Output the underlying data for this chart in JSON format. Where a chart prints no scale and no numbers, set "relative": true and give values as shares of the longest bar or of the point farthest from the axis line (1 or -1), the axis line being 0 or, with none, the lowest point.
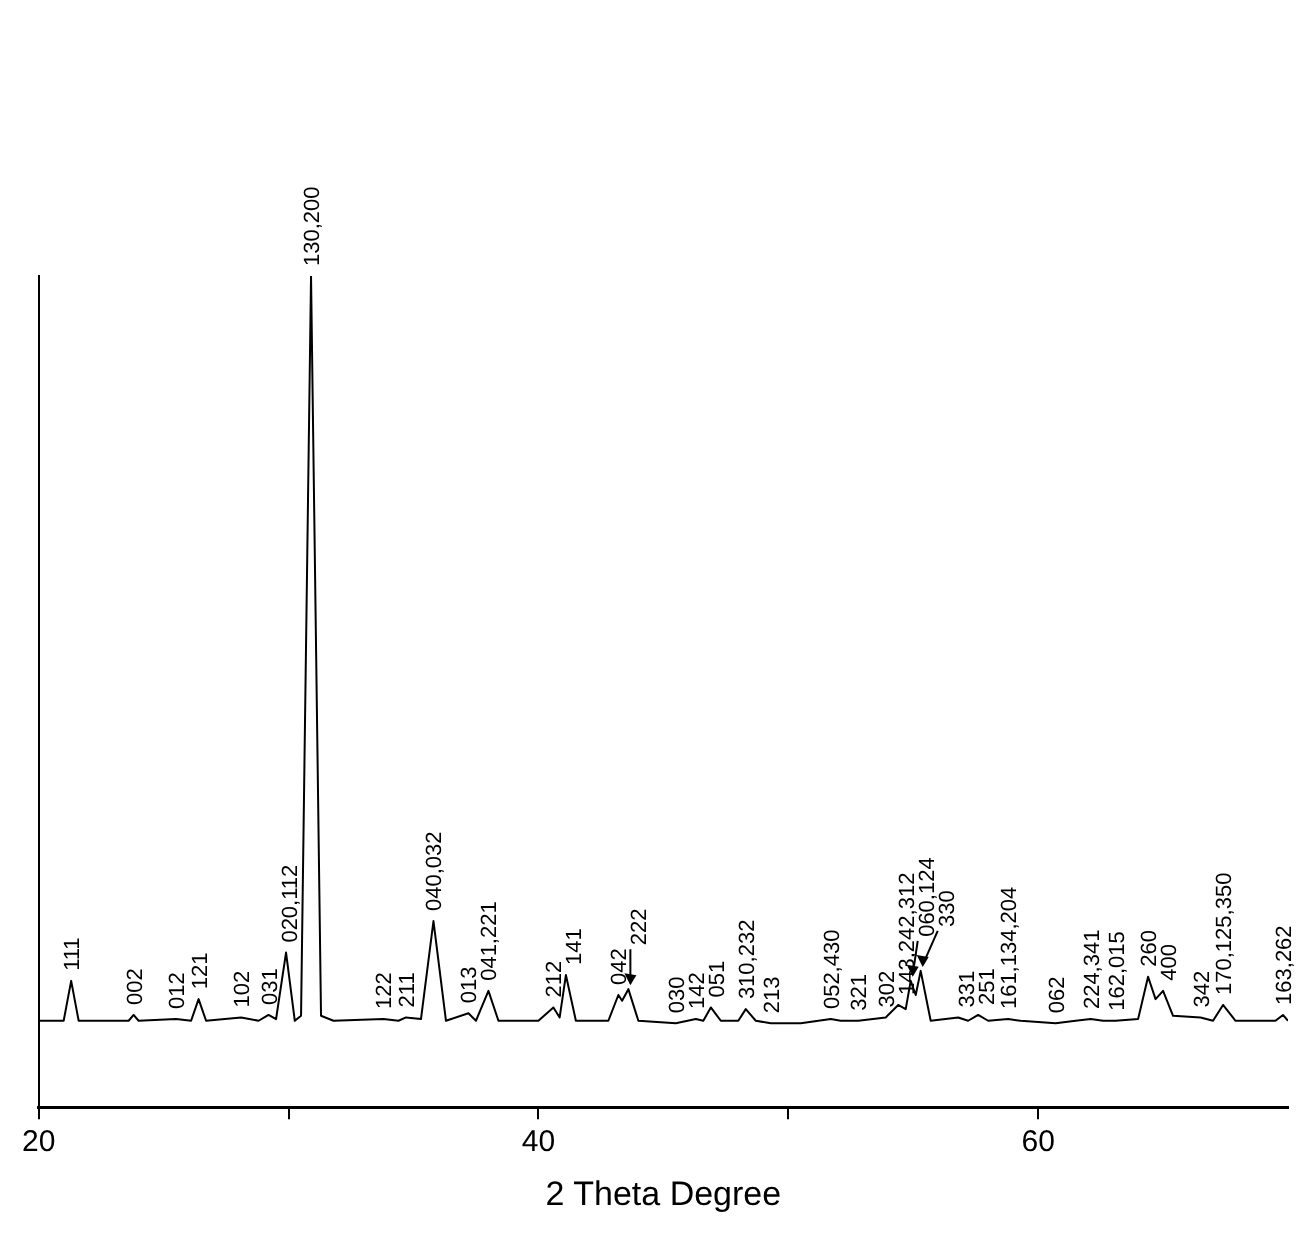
{
  "chart_data": {
    "type": "line",
    "relative": true,
    "xlabel": "2 Theta Degree",
    "xlim": [
      20,
      70
    ],
    "xticks": [
      20,
      {
        "value": 30,
        "label": null
      },
      40,
      {
        "value": 50,
        "label": null
      },
      60
    ],
    "grid": false,
    "legend": false,
    "marker": "none",
    "line_style": "solid",
    "series": [
      {
        "color": "#000000",
        "x": [
          20.0,
          21.0,
          21.3,
          21.6,
          23.6,
          23.8,
          24.0,
          25.5,
          26.1,
          26.4,
          26.7,
          28.1,
          28.8,
          29.2,
          29.5,
          29.9,
          30.25,
          30.5,
          30.9,
          31.3,
          31.8,
          33.8,
          34.4,
          34.7,
          35.3,
          35.8,
          36.3,
          37.2,
          37.5,
          38.0,
          38.4,
          40.0,
          40.6,
          40.85,
          41.1,
          41.5,
          42.8,
          43.2,
          43.35,
          43.6,
          44.0,
          45.5,
          46.3,
          46.6,
          46.9,
          47.3,
          48.0,
          48.3,
          48.7,
          49.3,
          50.5,
          51.7,
          52.1,
          52.8,
          53.9,
          54.4,
          54.7,
          54.9,
          55.1,
          55.3,
          55.7,
          56.8,
          57.2,
          57.6,
          58.0,
          58.8,
          59.3,
          60.7,
          61.5,
          62.1,
          62.6,
          63.1,
          64.0,
          64.4,
          64.7,
          65.0,
          65.4,
          66.5,
          67.0,
          67.4,
          67.9,
          69.5,
          69.8,
          70.0
        ],
        "values": [
          0.104,
          0.104,
          0.152,
          0.104,
          0.104,
          0.111,
          0.104,
          0.106,
          0.104,
          0.13,
          0.104,
          0.108,
          0.104,
          0.111,
          0.106,
          0.186,
          0.104,
          0.11,
          1.0,
          0.11,
          0.104,
          0.106,
          0.104,
          0.108,
          0.106,
          0.224,
          0.104,
          0.113,
          0.104,
          0.14,
          0.104,
          0.104,
          0.12,
          0.108,
          0.159,
          0.104,
          0.104,
          0.135,
          0.128,
          0.142,
          0.104,
          0.101,
          0.106,
          0.104,
          0.12,
          0.104,
          0.104,
          0.118,
          0.104,
          0.101,
          0.101,
          0.106,
          0.104,
          0.104,
          0.108,
          0.123,
          0.118,
          0.152,
          0.135,
          0.164,
          0.104,
          0.108,
          0.104,
          0.111,
          0.104,
          0.106,
          0.104,
          0.101,
          0.104,
          0.106,
          0.104,
          0.104,
          0.106,
          0.157,
          0.13,
          0.14,
          0.11,
          0.108,
          0.104,
          0.123,
          0.104,
          0.104,
          0.111,
          0.104
        ]
      }
    ],
    "annotations": [
      {
        "text": "111",
        "x": 21.3,
        "y": 0.152
      },
      {
        "text": "002",
        "x": 23.8,
        "y": 0.111
      },
      {
        "text": "012",
        "x": 25.5,
        "y": 0.106
      },
      {
        "text": "121",
        "x": 26.4,
        "y": 0.13
      },
      {
        "text": "102",
        "x": 28.1,
        "y": 0.108
      },
      {
        "text": "031",
        "x": 29.2,
        "y": 0.111
      },
      {
        "text": "020,112",
        "x": 29.9,
        "y": 0.186
      },
      {
        "text": "130,200",
        "x": 30.9,
        "y": 1.0
      },
      {
        "text": "122",
        "x": 33.8,
        "y": 0.106
      },
      {
        "text": "211",
        "x": 34.7,
        "y": 0.108
      },
      {
        "text": "040,032",
        "x": 35.8,
        "y": 0.224
      },
      {
        "text": "013",
        "x": 37.2,
        "y": 0.113
      },
      {
        "text": "041,221",
        "x": 38.0,
        "y": 0.14
      },
      {
        "text": "212",
        "x": 40.6,
        "y": 0.12
      },
      {
        "text": "141",
        "x": 41.1,
        "y": 0.159
      },
      {
        "text": "042",
        "x": 43.2,
        "y": 0.135
      },
      {
        "text": "222",
        "x": 43.6,
        "y": 0.142
      },
      {
        "text": "030",
        "x": 45.5,
        "y": 0.101
      },
      {
        "text": "142",
        "x": 46.3,
        "y": 0.106
      },
      {
        "text": "051",
        "x": 46.9,
        "y": 0.12
      },
      {
        "text": "310,232",
        "x": 48.3,
        "y": 0.118
      },
      {
        "text": "213",
        "x": 49.3,
        "y": 0.101
      },
      {
        "text": "052,430",
        "x": 51.7,
        "y": 0.106
      },
      {
        "text": "321",
        "x": 52.8,
        "y": 0.104
      },
      {
        "text": "302",
        "x": 53.9,
        "y": 0.108
      },
      {
        "text": "143,242,312",
        "x": 54.4,
        "y": 0.123
      },
      {
        "text": "060,124",
        "x": 54.9,
        "y": 0.152
      },
      {
        "text": "330",
        "x": 55.3,
        "y": 0.164
      },
      {
        "text": "331",
        "x": 56.8,
        "y": 0.108
      },
      {
        "text": "251",
        "x": 57.6,
        "y": 0.111
      },
      {
        "text": "161,134,204",
        "x": 58.8,
        "y": 0.106
      },
      {
        "text": "062",
        "x": 60.7,
        "y": 0.101
      },
      {
        "text": "224,341",
        "x": 62.1,
        "y": 0.106
      },
      {
        "text": "162,015",
        "x": 63.1,
        "y": 0.104
      },
      {
        "text": "260",
        "x": 64.4,
        "y": 0.157
      },
      {
        "text": "400",
        "x": 65.0,
        "y": 0.14
      },
      {
        "text": "342",
        "x": 66.5,
        "y": 0.108
      },
      {
        "text": "170,125,350",
        "x": 67.4,
        "y": 0.123
      },
      {
        "text": "163,262",
        "x": 69.8,
        "y": 0.111
      }
    ]
  }
}
